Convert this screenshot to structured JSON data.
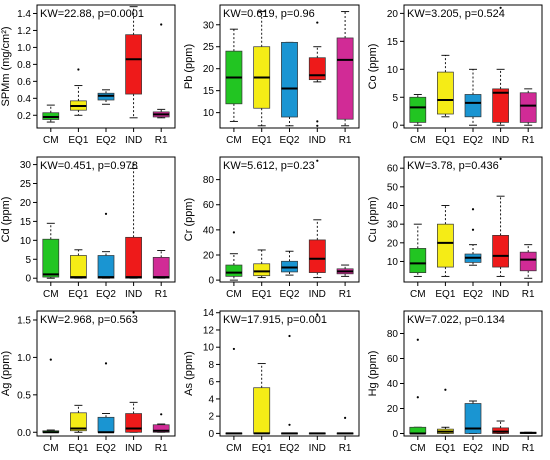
{
  "colors": {
    "CM": "#22c522",
    "EQ1": "#f5ec16",
    "EQ2": "#1a95d2",
    "IND": "#ee1a1a",
    "R1": "#d12b96",
    "median": "#000000",
    "whisker": "#000000"
  },
  "chart_data": [
    {
      "type": "box",
      "ylabel": "SPMm (mg/cm²)",
      "stat_label": "KW=22.88, p=0.0001",
      "categories": [
        "CM",
        "EQ1",
        "EQ2",
        "IND",
        "R1"
      ],
      "ylim": [
        0.05,
        1.5
      ],
      "yticks": [
        0.2,
        0.4,
        0.6,
        0.8,
        1.0,
        1.2,
        1.4
      ],
      "ytick_labels": [
        "0.2",
        "0.4",
        "0.6",
        "0.8",
        "1.0",
        "1.2",
        "1.4"
      ],
      "boxes": [
        {
          "min": 0.12,
          "q1": 0.15,
          "median": 0.18,
          "q3": 0.23,
          "max": 0.32,
          "outliers": []
        },
        {
          "min": 0.2,
          "q1": 0.26,
          "median": 0.31,
          "q3": 0.37,
          "max": 0.55,
          "outliers": [
            0.74
          ]
        },
        {
          "min": 0.33,
          "q1": 0.38,
          "median": 0.43,
          "q3": 0.46,
          "max": 0.5,
          "outliers": []
        },
        {
          "min": 0.17,
          "q1": 0.45,
          "median": 0.86,
          "q3": 1.15,
          "max": 1.48,
          "outliers": []
        },
        {
          "min": 0.17,
          "q1": 0.18,
          "median": 0.21,
          "q3": 0.24,
          "max": 0.27,
          "outliers": [
            1.27
          ]
        }
      ]
    },
    {
      "type": "box",
      "ylabel": "Pb (ppm)",
      "stat_label": "KW=0.619, p=0.96",
      "categories": [
        "CM",
        "EQ1",
        "EQ2",
        "IND",
        "R1"
      ],
      "ylim": [
        6.5,
        34.5
      ],
      "yticks": [
        10,
        15,
        20,
        25,
        30
      ],
      "ytick_labels": [
        "10",
        "15",
        "20",
        "25",
        "30"
      ],
      "boxes": [
        {
          "min": 8,
          "q1": 12,
          "median": 18,
          "q3": 24,
          "max": 29,
          "outliers": []
        },
        {
          "min": 7,
          "q1": 11,
          "median": 18,
          "q3": 25,
          "max": 33,
          "outliers": []
        },
        {
          "min": 7,
          "q1": 9,
          "median": 15.5,
          "q3": 26,
          "max": 26,
          "outliers": []
        },
        {
          "min": 17,
          "q1": 17.5,
          "median": 18.5,
          "q3": 22.5,
          "max": 25,
          "outliers": [
            30.5,
            8,
            7
          ]
        },
        {
          "min": 7,
          "q1": 8.5,
          "median": 22,
          "q3": 27,
          "max": 33,
          "outliers": []
        }
      ]
    },
    {
      "type": "box",
      "ylabel": "Co (ppm)",
      "stat_label": "KW=3.205, p=0.524",
      "categories": [
        "CM",
        "EQ1",
        "EQ2",
        "IND",
        "R1"
      ],
      "ylim": [
        -0.5,
        21.5
      ],
      "yticks": [
        0,
        5,
        10,
        15,
        20
      ],
      "ytick_labels": [
        "0",
        "5",
        "10",
        "15",
        "20"
      ],
      "boxes": [
        {
          "min": 0,
          "q1": 0.5,
          "median": 3.2,
          "q3": 5,
          "max": 5.5,
          "outliers": []
        },
        {
          "min": 1.5,
          "q1": 2,
          "median": 4.5,
          "q3": 9.5,
          "max": 12.5,
          "outliers": []
        },
        {
          "min": 0,
          "q1": 1.5,
          "median": 4,
          "q3": 5.5,
          "max": 10,
          "outliers": []
        },
        {
          "min": 0,
          "q1": 0.5,
          "median": 5.8,
          "q3": 6.5,
          "max": 10,
          "outliers": [
            21
          ]
        },
        {
          "min": 0,
          "q1": 0.5,
          "median": 3.5,
          "q3": 5.8,
          "max": 6.5,
          "outliers": []
        }
      ]
    },
    {
      "type": "box",
      "ylabel": "Cd (ppm)",
      "stat_label": "KW=0.451, p=0.978",
      "categories": [
        "CM",
        "EQ1",
        "EQ2",
        "IND",
        "R1"
      ],
      "ylim": [
        -1,
        32
      ],
      "yticks": [
        0,
        5,
        10,
        15,
        20,
        25,
        30
      ],
      "ytick_labels": [
        "0",
        "5",
        "10",
        "15",
        "20",
        "25",
        "30"
      ],
      "boxes": [
        {
          "min": 0,
          "q1": 0.3,
          "median": 1,
          "q3": 10.3,
          "max": 14.5,
          "outliers": []
        },
        {
          "min": 0,
          "q1": 0,
          "median": 0.3,
          "q3": 6,
          "max": 7.5,
          "outliers": []
        },
        {
          "min": 0,
          "q1": 0,
          "median": 0.3,
          "q3": 6,
          "max": 7,
          "outliers": [
            17
          ]
        },
        {
          "min": 0,
          "q1": 0,
          "median": 0.3,
          "q3": 10.8,
          "max": 29,
          "outliers": [
            30
          ]
        },
        {
          "min": 0,
          "q1": 0,
          "median": 0.3,
          "q3": 5.5,
          "max": 7.3,
          "outliers": []
        }
      ]
    },
    {
      "type": "box",
      "ylabel": "Cr (ppm)",
      "stat_label": "KW=5.612, p=0.23",
      "categories": [
        "CM",
        "EQ1",
        "EQ2",
        "IND",
        "R1"
      ],
      "ylim": [
        -1.5,
        98
      ],
      "yticks": [
        0,
        20,
        40,
        60,
        80
      ],
      "ytick_labels": [
        "0",
        "20",
        "40",
        "60",
        "80"
      ],
      "boxes": [
        {
          "min": 0,
          "q1": 3,
          "median": 6,
          "q3": 12,
          "max": 21,
          "outliers": [
            38
          ]
        },
        {
          "min": 2,
          "q1": 3.5,
          "median": 7,
          "q3": 13,
          "max": 24,
          "outliers": []
        },
        {
          "min": 4,
          "q1": 6.5,
          "median": 10,
          "q3": 15,
          "max": 23,
          "outliers": []
        },
        {
          "min": 2,
          "q1": 6,
          "median": 17,
          "q3": 32,
          "max": 48,
          "outliers": [
            95
          ]
        },
        {
          "min": 3,
          "q1": 5,
          "median": 7,
          "q3": 9,
          "max": 12,
          "outliers": []
        }
      ]
    },
    {
      "type": "box",
      "ylabel": "Cu (ppm)",
      "stat_label": "KW=3.78, p=0.436",
      "categories": [
        "CM",
        "EQ1",
        "EQ2",
        "IND",
        "R1"
      ],
      "ylim": [
        -1,
        66
      ],
      "yticks": [
        10,
        20,
        30,
        40,
        50,
        60
      ],
      "ytick_labels": [
        "10",
        "20",
        "30",
        "40",
        "50",
        "60"
      ],
      "boxes": [
        {
          "min": 2,
          "q1": 4,
          "median": 9,
          "q3": 17,
          "max": 30,
          "outliers": []
        },
        {
          "min": 2,
          "q1": 7,
          "median": 20,
          "q3": 30,
          "max": 40,
          "outliers": []
        },
        {
          "min": 8,
          "q1": 9.5,
          "median": 12,
          "q3": 14,
          "max": 19,
          "outliers": [
            38,
            27
          ]
        },
        {
          "min": 2,
          "q1": 7,
          "median": 13,
          "q3": 24,
          "max": 45,
          "outliers": [
            65
          ]
        },
        {
          "min": 1,
          "q1": 5,
          "median": 11,
          "q3": 15,
          "max": 19,
          "outliers": []
        }
      ]
    },
    {
      "type": "box",
      "ylabel": "Ag (ppm)",
      "stat_label": "KW=2.968, p=0.563",
      "categories": [
        "CM",
        "EQ1",
        "EQ2",
        "IND",
        "R1"
      ],
      "ylim": [
        -0.05,
        1.62
      ],
      "yticks": [
        0.0,
        0.5,
        1.0,
        1.5
      ],
      "ytick_labels": [
        "0.0",
        "0.5",
        "1.0",
        "1.5"
      ],
      "boxes": [
        {
          "min": 0,
          "q1": 0,
          "median": 0,
          "q3": 0.02,
          "max": 0.03,
          "outliers": [
            0.97
          ]
        },
        {
          "min": 0,
          "q1": 0.02,
          "median": 0.05,
          "q3": 0.26,
          "max": 0.36,
          "outliers": []
        },
        {
          "min": 0,
          "q1": 0,
          "median": 0,
          "q3": 0.2,
          "max": 0.25,
          "outliers": [
            0.92
          ]
        },
        {
          "min": 0,
          "q1": 0,
          "median": 0.05,
          "q3": 0.25,
          "max": 0.4,
          "outliers": [
            1.6
          ]
        },
        {
          "min": 0,
          "q1": 0,
          "median": 0.02,
          "q3": 0.1,
          "max": 0.11,
          "outliers": [
            0.24
          ]
        }
      ]
    },
    {
      "type": "box",
      "ylabel": "As (ppm)",
      "stat_label": "KW=17.915, p=0.001",
      "categories": [
        "CM",
        "EQ1",
        "EQ2",
        "IND",
        "R1"
      ],
      "ylim": [
        -0.3,
        14.2
      ],
      "yticks": [
        0,
        2,
        4,
        6,
        8,
        10,
        12,
        14
      ],
      "ytick_labels": [
        "0",
        "2",
        "4",
        "6",
        "8",
        "10",
        "12",
        "14"
      ],
      "boxes": [
        {
          "min": 0,
          "q1": 0,
          "median": 0,
          "q3": 0.05,
          "max": 0.05,
          "outliers": [
            9.8
          ]
        },
        {
          "min": 0,
          "q1": 0,
          "median": 0,
          "q3": 5.3,
          "max": 8.1,
          "outliers": []
        },
        {
          "min": 0,
          "q1": 0,
          "median": 0,
          "q3": 0.05,
          "max": 0.05,
          "outliers": [
            11.3,
            1.0
          ]
        },
        {
          "min": 0,
          "q1": 0,
          "median": 0,
          "q3": 0.05,
          "max": 0.05,
          "outliers": [
            13.8
          ]
        },
        {
          "min": 0,
          "q1": 0,
          "median": 0,
          "q3": 0.05,
          "max": 0.05,
          "outliers": [
            1.8
          ]
        }
      ]
    },
    {
      "type": "box",
      "ylabel": "Hg (ppm)",
      "stat_label": "KW=7.022, p=0.134",
      "categories": [
        "CM",
        "EQ1",
        "EQ2",
        "IND",
        "R1"
      ],
      "ylim": [
        -2,
        98
      ],
      "yticks": [
        0,
        20,
        40,
        60,
        80
      ],
      "ytick_labels": [
        "0",
        "20",
        "40",
        "60",
        "80"
      ],
      "boxes": [
        {
          "min": 0,
          "q1": 0,
          "median": 0,
          "q3": 5,
          "max": 5,
          "outliers": [
            75,
            29
          ]
        },
        {
          "min": 0,
          "q1": 0,
          "median": 1.5,
          "q3": 3.5,
          "max": 5,
          "outliers": [
            35
          ]
        },
        {
          "min": 0,
          "q1": 0,
          "median": 4,
          "q3": 24,
          "max": 26,
          "outliers": []
        },
        {
          "min": 0,
          "q1": 0,
          "median": 1.5,
          "q3": 4.5,
          "max": 10,
          "outliers": []
        },
        {
          "min": 0,
          "q1": 0,
          "median": 0.5,
          "q3": 1,
          "max": 1,
          "outliers": []
        }
      ]
    }
  ]
}
